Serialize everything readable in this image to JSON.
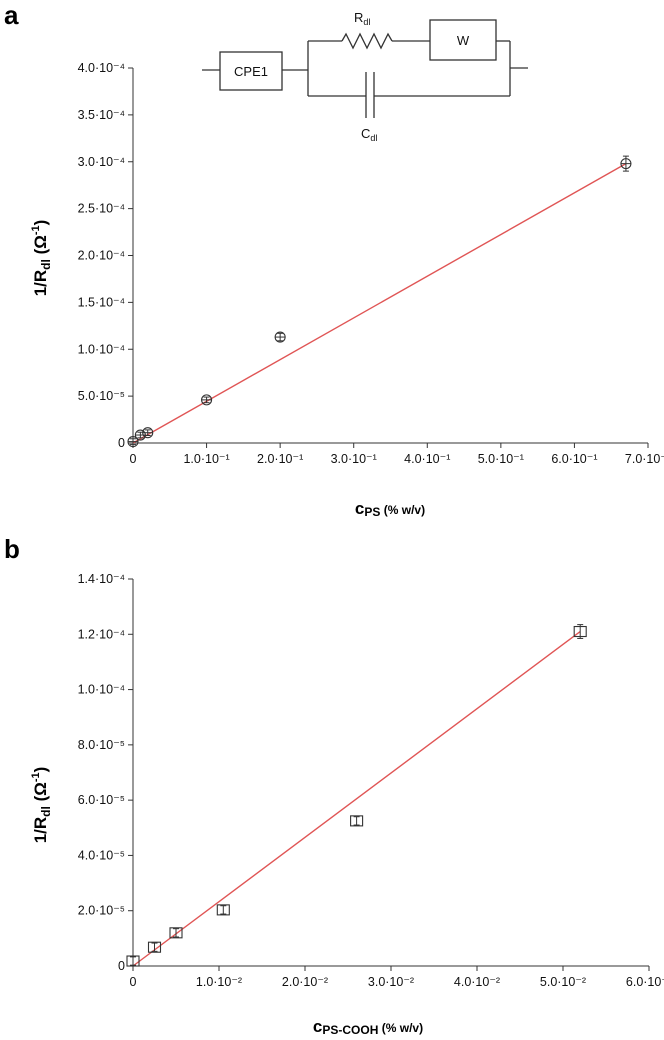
{
  "chart_data": [
    {
      "type": "scatter",
      "panel_label": "a",
      "xlabel_main": "c",
      "xlabel_sub": "PS",
      "xlabel_unit": " (% w/v)",
      "ylabel_main": "1/R",
      "ylabel_sub": "dl",
      "ylabel_unit": " (Ω",
      "ylabel_sup": "-1",
      "ylabel_close": ")",
      "xlim": [
        0,
        0.7
      ],
      "ylim": [
        0,
        0.0004
      ],
      "x_ticks": [
        0,
        0.1,
        0.2,
        0.3,
        0.4,
        0.5,
        0.6,
        0.7
      ],
      "x_tick_labels": [
        "0",
        "1.0·10⁻¹",
        "2.0·10⁻¹",
        "3.0·10⁻¹",
        "4.0·10⁻¹",
        "5.0·10⁻¹",
        "6.0·10⁻¹",
        "7.0·10⁻¹"
      ],
      "y_ticks": [
        0,
        5e-05,
        0.0001,
        0.00015,
        0.0002,
        0.00025,
        0.0003,
        0.00035,
        0.0004
      ],
      "y_tick_labels": [
        "0",
        "5.0·10⁻⁵",
        "1.0·10⁻⁴",
        "1.5·10⁻⁴",
        "2.0·10⁻⁴",
        "2.5·10⁻⁴",
        "3.0·10⁻⁴",
        "3.5·10⁻⁴",
        "4.0·10⁻⁴"
      ],
      "marker": "circle",
      "points": [
        {
          "x": 0.0,
          "y": 1.5e-06,
          "err": 3e-06
        },
        {
          "x": 0.01,
          "y": 8.5e-06,
          "err": 3e-06
        },
        {
          "x": 0.02,
          "y": 1.1e-05,
          "err": 3e-06
        },
        {
          "x": 0.1,
          "y": 4.6e-05,
          "err": 3e-06
        },
        {
          "x": 0.2,
          "y": 0.000113,
          "err": 4e-06
        },
        {
          "x": 0.67,
          "y": 0.000298,
          "err": 8e-06
        }
      ],
      "fit_line": {
        "x": [
          0,
          0.67
        ],
        "y": [
          0,
          0.000298
        ],
        "color": "#e05555"
      },
      "inset_circuit": {
        "cpe_label": "CPE1",
        "resistor_label_main": "R",
        "resistor_label_sub": "dl",
        "warburg_label": "W",
        "capacitor_label_main": "C",
        "capacitor_label_sub": "dl"
      }
    },
    {
      "type": "scatter",
      "panel_label": "b",
      "xlabel_main": "c",
      "xlabel_sub": "PS-COOH",
      "xlabel_unit": " (% w/v)",
      "ylabel_main": "1/R",
      "ylabel_sub": "dl",
      "ylabel_unit": " (Ω",
      "ylabel_sup": "-1",
      "ylabel_close": ")",
      "xlim": [
        0,
        0.06
      ],
      "ylim": [
        0,
        0.00014
      ],
      "x_ticks": [
        0,
        0.01,
        0.02,
        0.03,
        0.04,
        0.05,
        0.06
      ],
      "x_tick_labels": [
        "0",
        "1.0·10⁻²",
        "2.0·10⁻²",
        "3.0·10⁻²",
        "4.0·10⁻²",
        "5.0·10⁻²",
        "6.0·10⁻²"
      ],
      "y_ticks": [
        0,
        2e-05,
        4e-05,
        6e-05,
        8e-05,
        0.0001,
        0.00012,
        0.00014
      ],
      "y_tick_labels": [
        "0",
        "2.0·10⁻⁵",
        "4.0·10⁻⁵",
        "6.0·10⁻⁵",
        "8.0·10⁻⁵",
        "1.0·10⁻⁴",
        "1.2·10⁻⁴",
        "1.4·10⁻⁴"
      ],
      "marker": "square",
      "points": [
        {
          "x": 0.0,
          "y": 1.8e-06,
          "err": 1.5e-06
        },
        {
          "x": 0.0025,
          "y": 6.8e-06,
          "err": 1.5e-06
        },
        {
          "x": 0.005,
          "y": 1.2e-05,
          "err": 1.5e-06
        },
        {
          "x": 0.0105,
          "y": 2.03e-05,
          "err": 1.5e-06
        },
        {
          "x": 0.026,
          "y": 5.25e-05,
          "err": 1.5e-06
        },
        {
          "x": 0.052,
          "y": 0.000121,
          "err": 2.5e-06
        }
      ],
      "fit_line": {
        "x": [
          0,
          0.052
        ],
        "y": [
          0,
          0.000121
        ],
        "color": "#e05555"
      }
    }
  ]
}
